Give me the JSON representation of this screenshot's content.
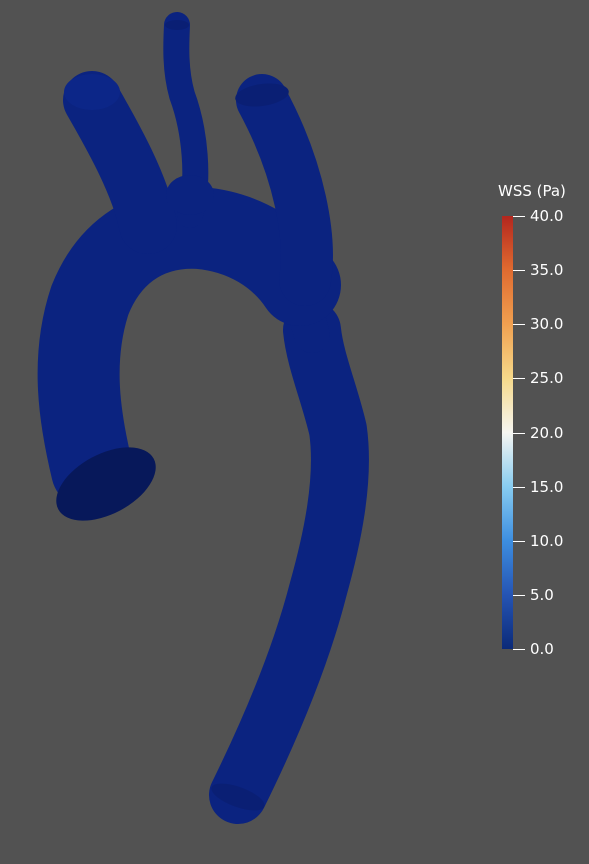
{
  "legend": {
    "title": "WSS (Pa)",
    "ticks": [
      "40.0",
      "35.0",
      "30.0",
      "25.0",
      "20.0",
      "15.0",
      "10.0",
      "5.0",
      "0.0"
    ],
    "range": [
      0,
      40
    ],
    "colormap_colors": [
      "#0b2a78",
      "#2554b4",
      "#3d8ee0",
      "#88ccf0",
      "#f6f6f2",
      "#f6d98a",
      "#f0a050",
      "#e06b30",
      "#b3261e"
    ]
  },
  "scene": {
    "background_color": "#525252",
    "surface_color": "#0b2380",
    "object": "aorta-surface"
  }
}
